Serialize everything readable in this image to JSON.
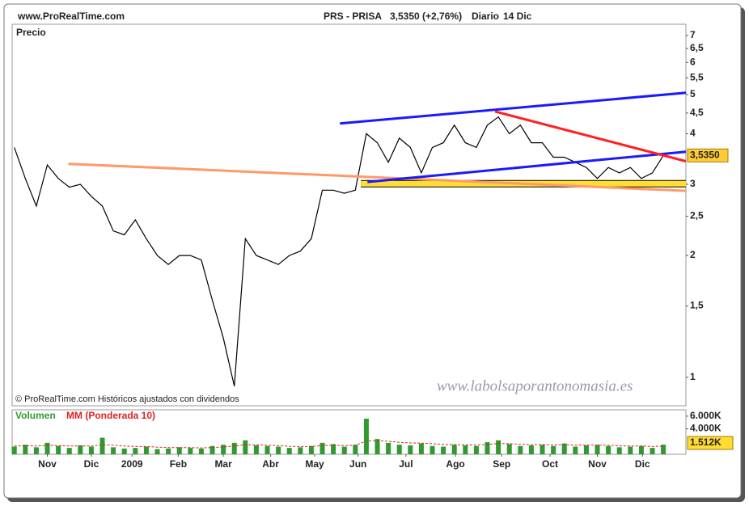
{
  "header": {
    "site": "www.ProRealTime.com",
    "symbol": "PRS - PRISA",
    "quote": "3,5350 (+2,76%)",
    "period": "Diario",
    "date": "14 Dic"
  },
  "chart_data": [
    {
      "type": "line",
      "title": "Precio",
      "log_scale": true,
      "copyright": "© ProRealTime.com Históricos ajustados con dividendos",
      "watermark": "www.labolsaporantonomasia.es",
      "xlim": [
        -0.2,
        61.05
      ],
      "ylim": [
        0.85,
        7.46
      ],
      "yticks": [
        1,
        {
          "value": 1.5,
          "label": "1,5"
        },
        2,
        {
          "value": 2.5,
          "label": "2,5"
        },
        3,
        4,
        {
          "value": 4.5,
          "label": "4,5"
        },
        5,
        {
          "value": 5.5,
          "label": "5,5"
        },
        6,
        {
          "value": 6.5,
          "label": "6,5"
        },
        7
      ],
      "last_label": {
        "value": 3.535,
        "label": "3,5350"
      },
      "series": [
        {
          "color": "#000000",
          "linewidth": 1.2,
          "x": [
            0,
            1,
            2,
            3,
            4,
            5,
            6,
            7,
            8,
            9,
            10,
            11,
            12,
            13,
            14,
            15,
            16,
            17,
            18,
            19,
            20,
            21,
            22,
            23,
            24,
            25,
            26,
            27,
            28,
            29,
            30,
            31,
            32,
            33,
            34,
            35,
            36,
            37,
            38,
            39,
            40,
            41,
            42,
            43,
            44,
            45,
            46,
            47,
            48,
            49,
            50,
            51,
            52,
            53,
            54,
            55,
            56,
            57,
            58,
            59
          ],
          "values": [
            3.7,
            3.1,
            2.65,
            3.35,
            3.1,
            2.95,
            3.0,
            2.8,
            2.65,
            2.3,
            2.25,
            2.45,
            2.2,
            2.0,
            1.9,
            2.0,
            2.0,
            1.95,
            1.55,
            1.25,
            0.95,
            2.2,
            2.0,
            1.95,
            1.9,
            2.0,
            2.05,
            2.2,
            2.9,
            2.9,
            2.85,
            2.9,
            4.0,
            3.8,
            3.4,
            3.9,
            3.7,
            3.2,
            3.7,
            3.8,
            4.2,
            3.8,
            3.7,
            4.2,
            4.4,
            4.0,
            4.2,
            3.8,
            3.8,
            3.5,
            3.5,
            3.4,
            3.3,
            3.1,
            3.3,
            3.2,
            3.3,
            3.1,
            3.2,
            3.535
          ]
        },
        {
          "color": "#ffdd33",
          "linewidth": 7,
          "x": [
            31.5,
            61.05
          ],
          "values": [
            3.01,
            3.01
          ]
        },
        {
          "color": "#ff9966",
          "linewidth": 3,
          "x": [
            4.9,
            61.05
          ],
          "values": [
            3.37,
            2.89
          ]
        },
        {
          "color": "#1a1aff",
          "linewidth": 3,
          "x": [
            29.6,
            61.05
          ],
          "values": [
            4.24,
            5.05
          ]
        },
        {
          "color": "#1a1aff",
          "linewidth": 3,
          "x": [
            32.1,
            61.05
          ],
          "values": [
            3.04,
            3.61
          ]
        },
        {
          "color": "#ff2020",
          "linewidth": 3,
          "x": [
            43.7,
            61.05
          ],
          "values": [
            4.54,
            3.42
          ]
        }
      ]
    },
    {
      "type": "bar",
      "xlim": [
        -0.2,
        61.05
      ],
      "ylim": [
        0,
        7000
      ],
      "yticks": [
        {
          "value": 4000,
          "label": "4.000K"
        },
        {
          "value": 6000,
          "label": "6.000K"
        }
      ],
      "xticks": [
        {
          "value": 3.0,
          "label": "Nov"
        },
        {
          "value": 7.0,
          "label": "Dic"
        },
        {
          "value": 10.7,
          "label": "2009"
        },
        {
          "value": 14.9,
          "label": "Feb"
        },
        {
          "value": 19.0,
          "label": "Mar"
        },
        {
          "value": 23.3,
          "label": "Abr"
        },
        {
          "value": 27.3,
          "label": "May"
        },
        {
          "value": 31.25,
          "label": "Jun"
        },
        {
          "value": 35.6,
          "label": "Jul"
        },
        {
          "value": 40.1,
          "label": "Ago"
        },
        {
          "value": 44.3,
          "label": "Sep"
        },
        {
          "value": 48.7,
          "label": "Oct"
        },
        {
          "value": 53.0,
          "label": "Nov"
        },
        {
          "value": 57.1,
          "label": "Dic"
        }
      ],
      "series": [
        {
          "name": "Volumen",
          "color": "#2f9a2f",
          "x": [
            0,
            1,
            2,
            3,
            4,
            5,
            6,
            7,
            8,
            9,
            10,
            11,
            12,
            13,
            14,
            15,
            16,
            17,
            18,
            19,
            20,
            21,
            22,
            23,
            24,
            25,
            26,
            27,
            28,
            29,
            30,
            31,
            32,
            33,
            34,
            35,
            36,
            37,
            38,
            39,
            40,
            41,
            42,
            43,
            44,
            45,
            46,
            47,
            48,
            49,
            50,
            51,
            52,
            53,
            54,
            55,
            56,
            57,
            58,
            59
          ],
          "values": [
            1200,
            1500,
            1100,
            1800,
            1300,
            1000,
            1400,
            1200,
            2600,
            1100,
            900,
            1000,
            1200,
            800,
            900,
            1100,
            1000,
            900,
            1300,
            1500,
            1800,
            2200,
            1400,
            1300,
            1200,
            1000,
            1100,
            1300,
            1800,
            1600,
            1200,
            1500,
            5600,
            2400,
            1800,
            1500,
            1400,
            1700,
            1300,
            1200,
            1500,
            1400,
            1300,
            1900,
            2200,
            1600,
            1300,
            1400,
            1500,
            1300,
            1700,
            1200,
            1400,
            1500,
            1300,
            1100,
            1200,
            1300,
            1000,
            1512
          ],
          "last_label": "1.512K"
        },
        {
          "name": "MM (Ponderada 10)",
          "color": "#dd2222",
          "x": [
            0,
            1,
            2,
            3,
            4,
            5,
            6,
            7,
            8,
            9,
            10,
            11,
            12,
            13,
            14,
            15,
            16,
            17,
            18,
            19,
            20,
            21,
            22,
            23,
            24,
            25,
            26,
            27,
            28,
            29,
            30,
            31,
            32,
            33,
            34,
            35,
            36,
            37,
            38,
            39,
            40,
            41,
            42,
            43,
            44,
            45,
            46,
            47,
            48,
            49,
            50,
            51,
            52,
            53,
            54,
            55,
            56,
            57,
            58,
            59
          ],
          "values": [
            1300,
            1350,
            1300,
            1400,
            1380,
            1300,
            1320,
            1290,
            1500,
            1420,
            1300,
            1230,
            1220,
            1120,
            1060,
            1060,
            1040,
            1000,
            1060,
            1150,
            1300,
            1500,
            1480,
            1420,
            1360,
            1260,
            1220,
            1240,
            1380,
            1430,
            1380,
            1400,
            2100,
            2150,
            2050,
            1900,
            1780,
            1760,
            1650,
            1540,
            1520,
            1490,
            1450,
            1540,
            1700,
            1670,
            1570,
            1530,
            1520,
            1460,
            1520,
            1430,
            1420,
            1440,
            1410,
            1340,
            1300,
            1300,
            1220,
            1290
          ]
        }
      ]
    }
  ]
}
